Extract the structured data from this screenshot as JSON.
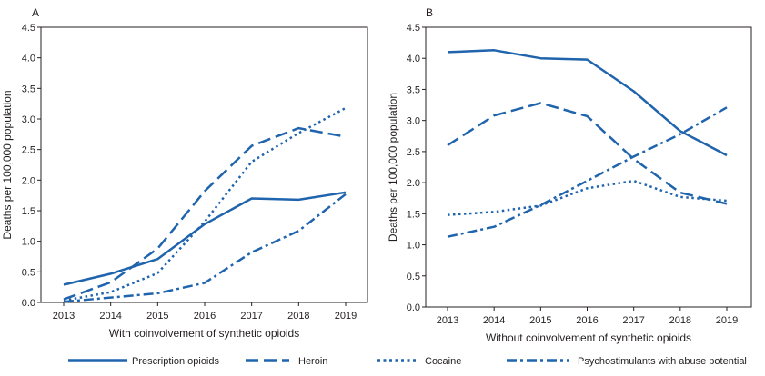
{
  "chart_data": [
    {
      "panel": "A",
      "type": "line",
      "xlabel": "With coinvolvement of synthetic opioids",
      "ylabel": "Deaths per 100,000 population",
      "ylim": [
        0,
        4.5
      ],
      "yticks": [
        "0.0",
        "0.5",
        "1.0",
        "1.5",
        "2.0",
        "2.5",
        "3.0",
        "3.5",
        "4.0",
        "4.5"
      ],
      "categories": [
        "2013",
        "2014",
        "2015",
        "2016",
        "2017",
        "2018",
        "2019"
      ],
      "series": [
        {
          "name": "Prescription opioids",
          "style": "solid",
          "values": [
            0.29,
            0.47,
            0.71,
            1.28,
            1.7,
            1.68,
            1.8
          ]
        },
        {
          "name": "Heroin",
          "style": "dashed",
          "values": [
            0.05,
            0.33,
            0.88,
            1.82,
            2.56,
            2.85,
            2.71
          ]
        },
        {
          "name": "Cocaine",
          "style": "dotted",
          "values": [
            0.03,
            0.17,
            0.48,
            1.32,
            2.3,
            2.77,
            3.18
          ]
        },
        {
          "name": "Psychostimulants with abuse potential",
          "style": "dashdot",
          "values": [
            0.01,
            0.08,
            0.15,
            0.32,
            0.82,
            1.17,
            1.77
          ]
        }
      ]
    },
    {
      "panel": "B",
      "type": "line",
      "xlabel": "Without coinvolvement of synthetic opioids",
      "ylabel": "Deaths per 100,000 population",
      "ylim": [
        0,
        4.5
      ],
      "yticks": [
        "0.0",
        "0.5",
        "1.0",
        "1.5",
        "2.0",
        "2.5",
        "3.0",
        "3.5",
        "4.0",
        "4.5"
      ],
      "categories": [
        "2013",
        "2014",
        "2015",
        "2016",
        "2017",
        "2018",
        "2019"
      ],
      "series": [
        {
          "name": "Prescription opioids",
          "style": "solid",
          "values": [
            4.1,
            4.13,
            4.0,
            3.98,
            3.47,
            2.83,
            2.44
          ]
        },
        {
          "name": "Heroin",
          "style": "dashed",
          "values": [
            2.6,
            3.08,
            3.28,
            3.07,
            2.38,
            1.84,
            1.66
          ]
        },
        {
          "name": "Cocaine",
          "style": "dotted",
          "values": [
            1.48,
            1.53,
            1.63,
            1.91,
            2.03,
            1.77,
            1.71
          ]
        },
        {
          "name": "Psychostimulants with abuse potential",
          "style": "dashdot",
          "values": [
            1.13,
            1.29,
            1.64,
            2.03,
            2.42,
            2.78,
            3.21
          ]
        }
      ]
    }
  ],
  "legend": [
    {
      "label": "Prescription opioids",
      "style": "solid"
    },
    {
      "label": "Heroin",
      "style": "dashed"
    },
    {
      "label": "Cocaine",
      "style": "dotted"
    },
    {
      "label": "Psychostimulants with abuse potential",
      "style": "dashdot"
    }
  ],
  "colors": {
    "series": "#1f64ad",
    "axis": "#231f20",
    "text": "#231f20"
  }
}
